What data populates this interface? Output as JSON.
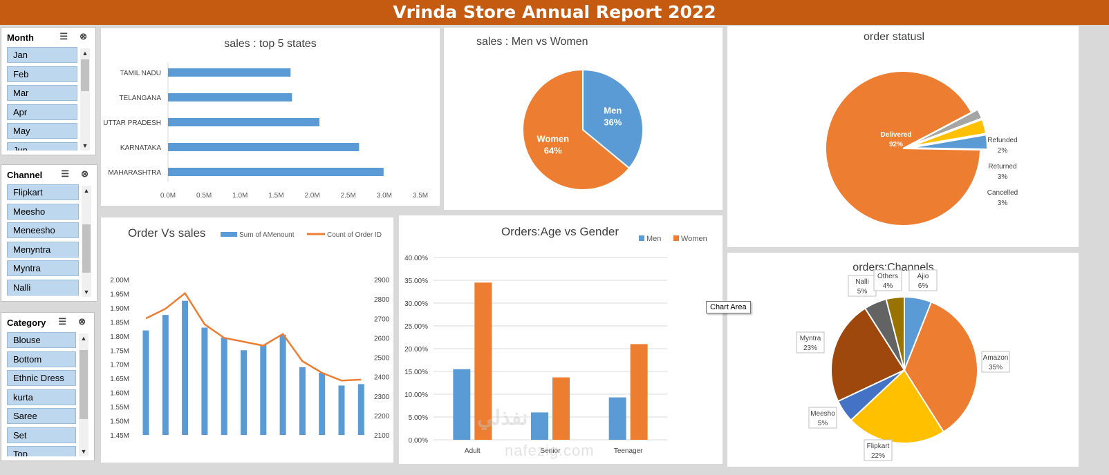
{
  "report_title": "Vrinda Store Annual Report 2022",
  "tooltip": "Chart Area",
  "watermark": {
    "arabic": "نفذلي",
    "latin": "nafezig.com"
  },
  "slicers": {
    "month": {
      "title": "Month",
      "items": [
        "Jan",
        "Feb",
        "Mar",
        "Apr",
        "May",
        "Jun"
      ]
    },
    "channel": {
      "title": "Channel",
      "items": [
        "Flipkart",
        "Meesho",
        "Meneesho",
        "Menyntra",
        "Myntra",
        "Nalli"
      ]
    },
    "category": {
      "title": "Category",
      "items": [
        "Blouse",
        "Bottom",
        "Ethnic Dress",
        "kurta",
        "Saree",
        "Set",
        "Top"
      ]
    }
  },
  "colors": {
    "accent": "#c55a11",
    "blue": "#5b9bd5",
    "orange": "#ed7d31",
    "gray": "#a5a5a5",
    "gold": "#ffc000",
    "darkblue": "#4472c4",
    "brown": "#9e480e",
    "darkgray": "#636363",
    "olive": "#997300"
  },
  "chart_data": [
    {
      "id": "top5",
      "type": "bar",
      "orientation": "horizontal",
      "title": "sales : top 5 states",
      "categories": [
        "TAMIL NADU",
        "TELANGANA",
        "UTTAR PRADESH",
        "KARNATAKA",
        "MAHARASHTRA"
      ],
      "values": [
        1.7,
        1.72,
        2.1,
        2.65,
        2.99
      ],
      "xticks": [
        "0.0M",
        "0.5M",
        "1.0M",
        "1.5M",
        "2.0M",
        "2.5M",
        "3.0M",
        "3.5M"
      ],
      "xlim": [
        0,
        3.5
      ],
      "grid": false
    },
    {
      "id": "gender",
      "type": "pie",
      "title": "sales : Men vs Women",
      "labels": [
        "Men",
        "Women"
      ],
      "values": [
        36,
        64
      ],
      "value_labels": [
        "36%",
        "64%"
      ]
    },
    {
      "id": "status",
      "type": "pie",
      "title": "order statusl",
      "labels": [
        "Delivered",
        "Refunded",
        "Returned",
        "Cancelled"
      ],
      "values": [
        92,
        2,
        3,
        3
      ],
      "value_labels": [
        "92%",
        "2%",
        "3%",
        "3%"
      ]
    },
    {
      "id": "ordersales",
      "type": "bar",
      "combo": "bar+line",
      "title": "Order Vs sales",
      "categories": [
        "Jan",
        "Feb",
        "Mar",
        "Apr",
        "May",
        "Jun",
        "Jul",
        "Aug",
        "Sep",
        "Oct",
        "Nov",
        "Dec"
      ],
      "series": [
        {
          "name": "Sum of AMenount",
          "type": "bar",
          "values": [
            1.82,
            1.875,
            1.925,
            1.83,
            1.795,
            1.75,
            1.77,
            1.805,
            1.69,
            1.67,
            1.625,
            1.63
          ]
        },
        {
          "name": "Count of Order ID",
          "type": "line",
          "values": [
            2700,
            2750,
            2830,
            2670,
            2600,
            2580,
            2560,
            2620,
            2480,
            2420,
            2380,
            2385
          ]
        }
      ],
      "yticks_left": [
        "2.00M",
        "1.95M",
        "1.90M",
        "1.85M",
        "1.80M",
        "1.75M",
        "1.70M",
        "1.65M",
        "1.60M",
        "1.55M",
        "1.50M",
        "1.45M"
      ],
      "ylim_left": [
        1.45,
        2.0
      ],
      "yticks_right": [
        "2900",
        "2800",
        "2700",
        "2600",
        "2500",
        "2400",
        "2300",
        "2200",
        "2100"
      ],
      "ylim_right": [
        2100,
        2900
      ],
      "legend": "top"
    },
    {
      "id": "agegender",
      "type": "bar",
      "title": "Orders:Age vs Gender",
      "categories": [
        "Adult",
        "Senior",
        "Teenager"
      ],
      "series": [
        {
          "name": "Men",
          "values": [
            15.5,
            6.0,
            9.3
          ]
        },
        {
          "name": "Women",
          "values": [
            34.5,
            13.7,
            21.0
          ]
        }
      ],
      "yticks": [
        "40.00%",
        "35.00%",
        "30.00%",
        "25.00%",
        "20.00%",
        "15.00%",
        "10.00%",
        "5.00%",
        "0.00%"
      ],
      "ylim": [
        0,
        40
      ],
      "grid": true,
      "legend": "top-right"
    },
    {
      "id": "channels",
      "type": "pie",
      "title": "orders:Channels",
      "labels": [
        "Ajio",
        "Amazon",
        "Flipkart",
        "Meesho",
        "Myntra",
        "Nalli",
        "Others"
      ],
      "values": [
        6,
        35,
        22,
        5,
        23,
        5,
        4
      ],
      "value_labels": [
        "6%",
        "35%",
        "22%",
        "5%",
        "23%",
        "5%",
        "4%"
      ]
    }
  ]
}
